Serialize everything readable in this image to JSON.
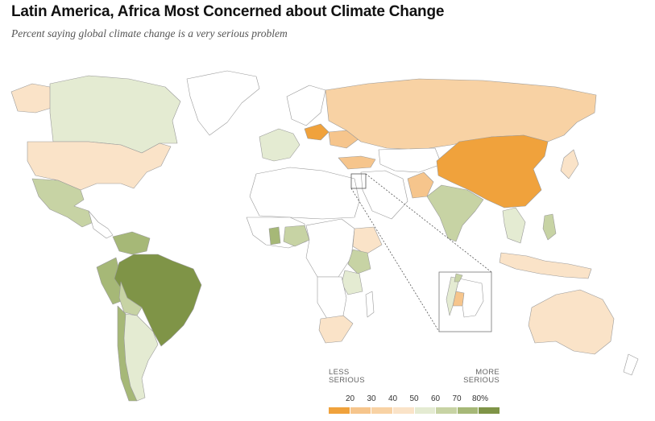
{
  "header": {
    "title": "Latin America, Africa Most Concerned about Climate Change",
    "subtitle": "Percent saying global climate change is a very serious problem"
  },
  "legend": {
    "less_label_1": "LESS",
    "less_label_2": "SERIOUS",
    "more_label_1": "MORE",
    "more_label_2": "SERIOUS",
    "ticks": [
      "20",
      "30",
      "40",
      "50",
      "60",
      "70",
      "80%"
    ],
    "colors": [
      "#f0a23c",
      "#f6c58c",
      "#f8d2a4",
      "#fae3c8",
      "#e4ebd2",
      "#c7d3a4",
      "#a6b877",
      "#7f9447"
    ]
  },
  "colors": {
    "no_data": "#ffffff",
    "border": "#9a9a9a",
    "inset_line": "#555555"
  },
  "map_data": {
    "regions": [
      {
        "name": "Canada",
        "bin": 4
      },
      {
        "name": "United States",
        "bin": 3
      },
      {
        "name": "Mexico",
        "bin": 5
      },
      {
        "name": "Venezuela",
        "bin": 6
      },
      {
        "name": "Brazil",
        "bin": 7
      },
      {
        "name": "Peru",
        "bin": 6
      },
      {
        "name": "Bolivia",
        "bin": 5
      },
      {
        "name": "Chile",
        "bin": 6
      },
      {
        "name": "Argentina",
        "bin": 4
      },
      {
        "name": "Russia",
        "bin": 2
      },
      {
        "name": "China",
        "bin": 0
      },
      {
        "name": "Poland",
        "bin": 0
      },
      {
        "name": "Ukraine",
        "bin": 1
      },
      {
        "name": "India",
        "bin": 5
      },
      {
        "name": "Pakistan",
        "bin": 1
      },
      {
        "name": "Turkey",
        "bin": 1
      },
      {
        "name": "Japan",
        "bin": 3
      },
      {
        "name": "Indonesia",
        "bin": 2
      },
      {
        "name": "Australia",
        "bin": 3
      },
      {
        "name": "Nigeria",
        "bin": 5
      },
      {
        "name": "Ghana",
        "bin": 6
      },
      {
        "name": "Kenya",
        "bin": 5
      },
      {
        "name": "Tanzania",
        "bin": 4
      },
      {
        "name": "South Africa",
        "bin": 3
      },
      {
        "name": "Ethiopia",
        "bin": 3
      }
    ]
  }
}
